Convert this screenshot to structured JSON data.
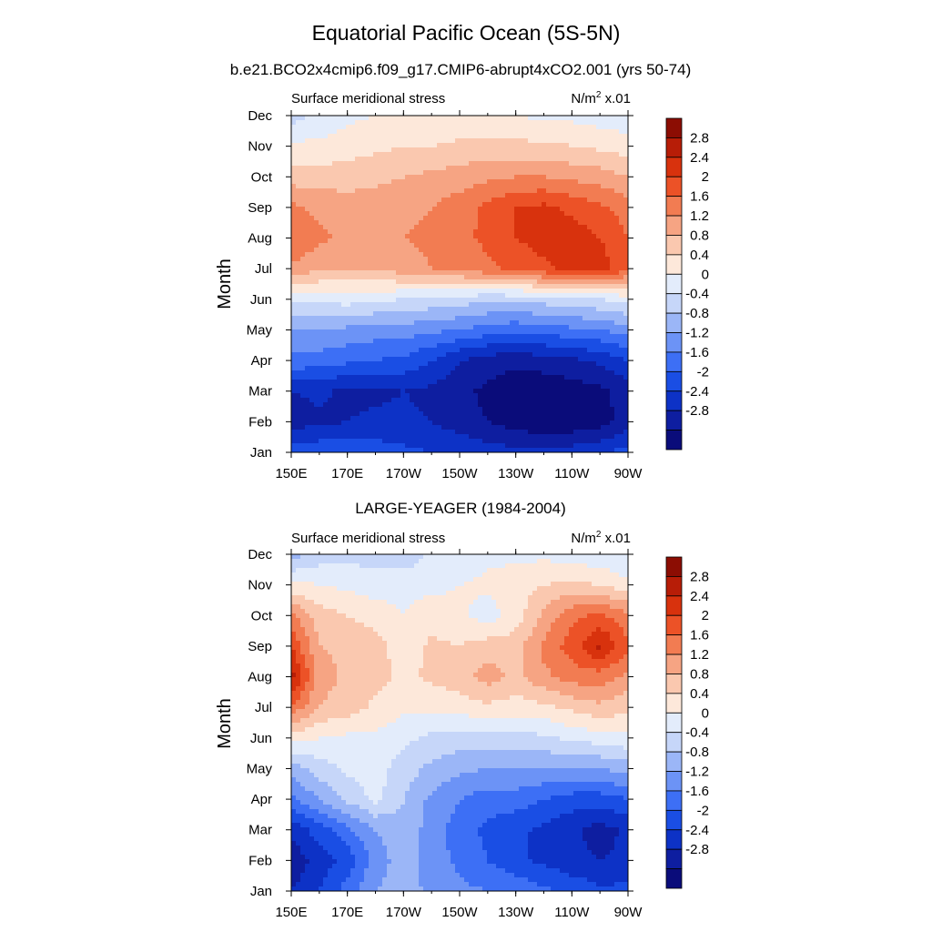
{
  "title": "Equatorial Pacific Ocean (5S-5N)",
  "colors": [
    "#0a0c7a",
    "#0e1ea0",
    "#0d32c6",
    "#1a4ee4",
    "#3d6ff5",
    "#6c93f6",
    "#9bb6f7",
    "#c6d6f9",
    "#e3ecfb",
    "#fde8da",
    "#fac8af",
    "#f6a483",
    "#f27c52",
    "#ec5227",
    "#d8320d",
    "#b71d07",
    "#8c0d03"
  ],
  "chart_data": [
    {
      "type": "heatmap",
      "title": "b.e21.BCO2x4cmip6.f09_g17.CMIP6-abrupt4xCO2.001 (yrs 50-74)",
      "left_string": "Surface meridional stress",
      "right_string": "N/m",
      "right_string_sup": "2",
      "right_string_tail": " x.01",
      "ylabel": "Month",
      "xlabel": "",
      "x_ticks": [
        "150E",
        "170E",
        "170W",
        "150W",
        "130W",
        "110W",
        "90W"
      ],
      "y_ticks": [
        "Jan",
        "Feb",
        "Mar",
        "Apr",
        "May",
        "Jun",
        "Jul",
        "Aug",
        "Sep",
        "Oct",
        "Nov",
        "Dec"
      ],
      "x_range": [
        150,
        270
      ],
      "levels": [
        -2.8,
        -2.4,
        -2,
        -1.6,
        -1.2,
        -0.8,
        -0.4,
        0,
        0.4,
        0.8,
        1.2,
        1.6,
        2,
        2.4,
        2.8
      ],
      "colorbar_labels": [
        "2.8",
        "2.4",
        "2",
        "1.6",
        "1.2",
        "0.8",
        "0.4",
        "0",
        "-0.4",
        "-0.8",
        "-1.2",
        "-1.6",
        "-2",
        "-2.4",
        "-2.8"
      ],
      "x": [
        150,
        160,
        170,
        180,
        190,
        200,
        210,
        220,
        230,
        240,
        250,
        260,
        270
      ],
      "y": [
        "Jan",
        "Feb",
        "Mar",
        "Apr",
        "May",
        "Jun",
        "Jul",
        "Aug",
        "Sep",
        "Oct",
        "Nov",
        "Dec"
      ],
      "z": [
        [
          -1.8,
          -1.7,
          -1.7,
          -1.8,
          -1.9,
          -2.0,
          -2.1,
          -2.2,
          -2.3,
          -2.3,
          -2.2,
          -2.1,
          -1.8
        ],
        [
          -2.6,
          -2.5,
          -2.4,
          -2.3,
          -2.3,
          -2.4,
          -2.6,
          -2.8,
          -3.0,
          -3.1,
          -3.1,
          -3.0,
          -2.6
        ],
        [
          -2.4,
          -2.3,
          -2.5,
          -2.5,
          -2.4,
          -2.5,
          -2.7,
          -2.9,
          -3.1,
          -3.1,
          -3.0,
          -2.9,
          -2.6
        ],
        [
          -1.3,
          -1.4,
          -1.5,
          -1.6,
          -1.7,
          -2.0,
          -2.4,
          -2.6,
          -2.7,
          -2.6,
          -2.5,
          -2.3,
          -2.0
        ],
        [
          -0.8,
          -0.8,
          -0.9,
          -1.0,
          -1.0,
          -1.1,
          -1.2,
          -1.4,
          -1.5,
          -1.4,
          -1.3,
          -1.2,
          -1.0
        ],
        [
          0.1,
          0.1,
          0.2,
          0.1,
          0.0,
          -0.1,
          -0.2,
          -0.3,
          -0.3,
          -0.2,
          -0.1,
          0.0,
          0.2
        ],
        [
          1.5,
          1.3,
          1.2,
          1.3,
          1.4,
          1.6,
          1.7,
          1.9,
          2.1,
          2.3,
          2.5,
          2.6,
          2.1
        ],
        [
          2.0,
          1.7,
          1.5,
          1.5,
          1.6,
          1.7,
          1.9,
          2.1,
          2.4,
          2.6,
          2.6,
          2.4,
          2.0
        ],
        [
          1.7,
          1.5,
          1.4,
          1.4,
          1.5,
          1.6,
          1.8,
          2.1,
          2.4,
          2.5,
          2.3,
          2.1,
          1.8
        ],
        [
          1.0,
          1.0,
          1.0,
          1.1,
          1.2,
          1.3,
          1.4,
          1.5,
          1.6,
          1.6,
          1.5,
          1.4,
          1.2
        ],
        [
          0.5,
          0.5,
          0.6,
          0.7,
          0.8,
          0.8,
          0.9,
          0.9,
          0.9,
          0.9,
          0.8,
          0.7,
          0.6
        ],
        [
          -0.2,
          0.1,
          0.3,
          0.4,
          0.4,
          0.4,
          0.4,
          0.4,
          0.4,
          0.3,
          0.3,
          0.2,
          0.1
        ]
      ]
    },
    {
      "type": "heatmap",
      "title": "LARGE-YEAGER (1984-2004)",
      "left_string": "Surface meridional stress",
      "right_string": "N/m",
      "right_string_sup": "2",
      "right_string_tail": " x.01",
      "ylabel": "Month",
      "xlabel": "",
      "x_ticks": [
        "150E",
        "170E",
        "170W",
        "150W",
        "130W",
        "110W",
        "90W"
      ],
      "y_ticks": [
        "Jan",
        "Feb",
        "Mar",
        "Apr",
        "May",
        "Jun",
        "Jul",
        "Aug",
        "Sep",
        "Oct",
        "Nov",
        "Dec"
      ],
      "x_range": [
        150,
        270
      ],
      "levels": [
        -2.8,
        -2.4,
        -2,
        -1.6,
        -1.2,
        -0.8,
        -0.4,
        0,
        0.4,
        0.8,
        1.2,
        1.6,
        2,
        2.4,
        2.8
      ],
      "colorbar_labels": [
        "2.8",
        "2.4",
        "2",
        "1.6",
        "1.2",
        "0.8",
        "0.4",
        "0",
        "-0.4",
        "-0.8",
        "-1.2",
        "-1.6",
        "-2",
        "-2.4",
        "-2.8"
      ],
      "x": [
        150,
        160,
        170,
        180,
        190,
        200,
        210,
        220,
        230,
        240,
        250,
        260,
        270
      ],
      "y": [
        "Jan",
        "Feb",
        "Mar",
        "Apr",
        "May",
        "Jun",
        "Jul",
        "Aug",
        "Sep",
        "Oct",
        "Nov",
        "Dec"
      ],
      "z": [
        [
          -2.4,
          -2.0,
          -1.4,
          -0.8,
          -0.6,
          -0.9,
          -1.1,
          -1.2,
          -1.3,
          -1.5,
          -1.7,
          -1.9,
          -1.9
        ],
        [
          -2.7,
          -2.2,
          -1.9,
          -1.0,
          -0.6,
          -1.0,
          -1.3,
          -1.6,
          -1.9,
          -2.1,
          -2.3,
          -2.4,
          -2.3
        ],
        [
          -2.3,
          -1.8,
          -1.3,
          -0.8,
          -0.5,
          -1.0,
          -1.4,
          -1.7,
          -1.9,
          -2.1,
          -2.3,
          -2.6,
          -2.3
        ],
        [
          -1.3,
          -0.8,
          -0.3,
          0.1,
          -0.4,
          -0.9,
          -1.2,
          -1.4,
          -1.4,
          -1.6,
          -1.8,
          -1.8,
          -1.6
        ],
        [
          -0.6,
          -0.2,
          0.1,
          0.2,
          -0.2,
          -0.5,
          -0.7,
          -0.8,
          -0.8,
          -0.8,
          -0.8,
          -0.8,
          -0.6
        ],
        [
          0.6,
          0.4,
          0.3,
          0.3,
          0.1,
          -0.1,
          -0.2,
          -0.2,
          -0.1,
          -0.1,
          0.1,
          0.2,
          0.3
        ],
        [
          1.9,
          1.2,
          1.0,
          0.7,
          0.5,
          0.5,
          0.6,
          0.7,
          0.6,
          0.7,
          0.9,
          1.1,
          0.9
        ],
        [
          3.0,
          1.4,
          1.1,
          1.0,
          0.7,
          0.9,
          1.0,
          1.4,
          1.1,
          1.5,
          1.8,
          1.8,
          1.5
        ],
        [
          2.4,
          1.2,
          1.1,
          1.0,
          0.5,
          0.9,
          0.8,
          1.0,
          1.0,
          1.7,
          2.2,
          2.9,
          2.1
        ],
        [
          1.7,
          1.0,
          0.8,
          0.6,
          0.4,
          0.6,
          0.5,
          0.2,
          0.6,
          1.3,
          1.9,
          2.1,
          1.7
        ],
        [
          0.5,
          0.4,
          0.3,
          0.2,
          0.3,
          0.3,
          0.4,
          0.5,
          0.6,
          0.8,
          0.9,
          0.8,
          0.5
        ],
        [
          -0.6,
          -0.2,
          -0.1,
          -0.2,
          -0.3,
          0.1,
          0.1,
          0.3,
          0.3,
          0.3,
          0.2,
          0.1,
          0.0
        ]
      ]
    }
  ]
}
